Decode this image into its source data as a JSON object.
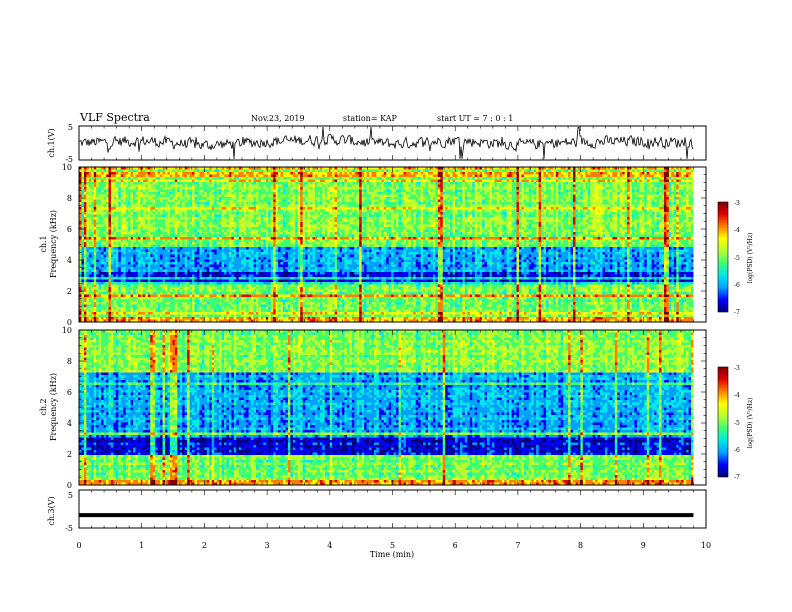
{
  "header": {
    "title": "VLF Spectra",
    "date": "Nov.23, 2019",
    "station": "station= KAP",
    "start": "start  UT =   7 : 0  : 1"
  },
  "colors": {
    "spectrogram": [
      "#00007a",
      "#0000ff",
      "#00a0ff",
      "#00e8e8",
      "#40ff70",
      "#b8ff30",
      "#ffff00",
      "#ff8000",
      "#e00000",
      "#800000"
    ],
    "trace": "#000000",
    "frame": "#000000"
  },
  "chart_data": [
    {
      "type": "line",
      "ylabel": "ch.1(V)",
      "ylim": [
        -5,
        5
      ],
      "yticks": [
        "5",
        "-5"
      ],
      "xlim": [
        0,
        10
      ],
      "series_description": "noisy waveform around 0 V with spikes",
      "x": [
        0,
        1,
        2,
        3,
        4,
        5,
        6,
        7,
        8,
        9,
        9.8
      ],
      "y": [
        0,
        0.5,
        -0.5,
        0.3,
        0.8,
        -0.2,
        0.6,
        -0.4,
        0.2,
        0.4,
        0
      ]
    },
    {
      "type": "heatmap",
      "ylabel": "ch.1\nFrequency  (kHz)",
      "ylabel_lines": [
        "ch.1",
        "Frequency  (kHz)"
      ],
      "xlim": [
        0,
        10
      ],
      "ylim": [
        0,
        10
      ],
      "yticks": [
        "0",
        "2",
        "4",
        "6",
        "8",
        "10"
      ],
      "data_end_min": 9.8,
      "colorbar": {
        "label": "log(PSD) (V²/Hz)",
        "range": [
          -7,
          -3
        ],
        "ticks": [
          "-3",
          "-4",
          "-5",
          "-6",
          "-7"
        ]
      },
      "bands_khz": [
        {
          "from": 0.0,
          "to": 0.3,
          "level": "high"
        },
        {
          "from": 0.3,
          "to": 2.4,
          "level": "medium"
        },
        {
          "from": 2.4,
          "to": 3.3,
          "level": "very low"
        },
        {
          "from": 3.3,
          "to": 4.9,
          "level": "low"
        },
        {
          "from": 4.9,
          "to": 10.0,
          "level": "medium"
        }
      ]
    },
    {
      "type": "heatmap",
      "ylabel": "ch.2\nFrequency  (kHz)",
      "ylabel_lines": [
        "ch.2",
        "Frequency  (kHz)"
      ],
      "xlim": [
        0,
        10
      ],
      "ylim": [
        0,
        10
      ],
      "yticks": [
        "0",
        "2",
        "4",
        "6",
        "8",
        "10"
      ],
      "data_end_min": 9.8,
      "colorbar": {
        "label": "log(PSD) (V²/Hz)",
        "range": [
          -7,
          -3
        ],
        "ticks": [
          "-3",
          "-4",
          "-5",
          "-6",
          "-7"
        ]
      },
      "bands_khz": [
        {
          "from": 0.0,
          "to": 0.3,
          "level": "high"
        },
        {
          "from": 0.3,
          "to": 1.9,
          "level": "medium"
        },
        {
          "from": 1.9,
          "to": 3.0,
          "level": "very low"
        },
        {
          "from": 3.0,
          "to": 7.2,
          "level": "low"
        },
        {
          "from": 7.2,
          "to": 10.0,
          "level": "medium"
        }
      ]
    },
    {
      "type": "line",
      "ylabel": "ch.3(V)",
      "ylim": [
        -5,
        5
      ],
      "yticks": [
        "5",
        "-5"
      ],
      "xlim": [
        0,
        10
      ],
      "xlabel": "Time  (min)",
      "xticks": [
        "0",
        "1",
        "2",
        "3",
        "4",
        "5",
        "6",
        "7",
        "8",
        "9",
        "10"
      ],
      "x": [
        0,
        9.8
      ],
      "y": [
        -1.7,
        -1.7
      ]
    }
  ]
}
